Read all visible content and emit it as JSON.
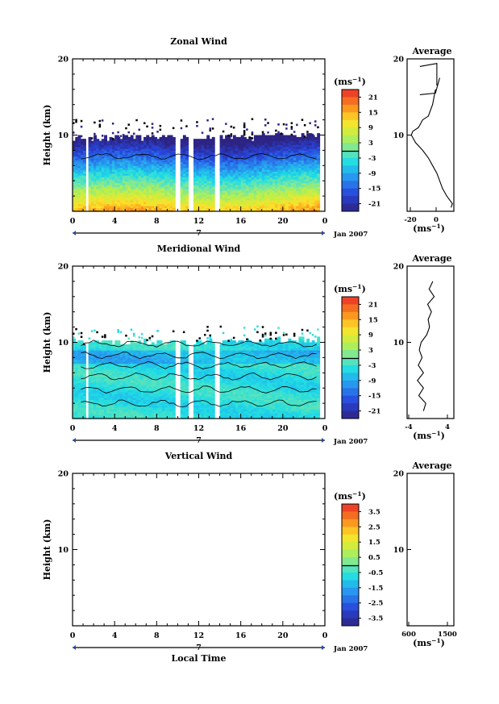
{
  "chart_data": [
    {
      "type": "heatmap",
      "title": "Zonal Wind",
      "ylabel": "Height (km)",
      "y_ticks": [
        "20",
        "10"
      ],
      "ylim": [
        0,
        20
      ],
      "x_ticks": [
        "0",
        "4",
        "8",
        "12",
        "16",
        "20",
        "0"
      ],
      "xlim": [
        0,
        24
      ],
      "date_day_label": "7",
      "date_label": "Jan 2007",
      "colorbar": {
        "unit": "(ms",
        "unit_exp": "−1",
        "unit_close": ")",
        "ticks": [
          "21",
          "15",
          "9",
          "3",
          "-3",
          "-9",
          "-15",
          "-21"
        ],
        "range": [
          -24,
          24
        ]
      },
      "average": {
        "title": "Average",
        "x_ticks": [
          "-20",
          "0"
        ],
        "xlim": [
          -25,
          8
        ],
        "xlabel": "(ms",
        "xlabel_exp": "−1",
        "xlabel_close": ")",
        "y_ticks": [
          "20",
          "10"
        ],
        "profile": [
          [
            0.5,
            6
          ],
          [
            1.0,
            7
          ],
          [
            1.5,
            5
          ],
          [
            2.0,
            3
          ],
          [
            3,
            0
          ],
          [
            4,
            -2
          ],
          [
            5,
            -4
          ],
          [
            6,
            -7
          ],
          [
            7,
            -10
          ],
          [
            8,
            -14
          ],
          [
            9,
            -19
          ],
          [
            10,
            -22
          ],
          [
            10.5,
            -21
          ],
          [
            11,
            -17
          ],
          [
            12,
            -14
          ],
          [
            12.5,
            -10
          ],
          [
            13,
            -9
          ],
          [
            14,
            -7
          ],
          [
            15,
            -6
          ],
          [
            16,
            -5
          ]
        ]
      }
    },
    {
      "type": "heatmap",
      "title": "Meridional Wind",
      "ylabel": "Height (km)",
      "y_ticks": [
        "20",
        "10"
      ],
      "ylim": [
        0,
        20
      ],
      "x_ticks": [
        "0",
        "4",
        "8",
        "12",
        "16",
        "20",
        "0"
      ],
      "xlim": [
        0,
        24
      ],
      "date_day_label": "7",
      "date_label": "Jan 2007",
      "colorbar": {
        "unit": "(ms",
        "unit_exp": "−1",
        "unit_close": ")",
        "ticks": [
          "21",
          "15",
          "9",
          "3",
          "-3",
          "-9",
          "-15",
          "-21"
        ],
        "range": [
          -24,
          24
        ]
      },
      "average": {
        "title": "Average",
        "x_ticks": [
          "-4",
          "4"
        ],
        "xlim": [
          -5,
          5
        ],
        "xlabel": "(ms",
        "xlabel_exp": "−1",
        "xlabel_close": ")",
        "y_ticks": [
          "20",
          "10"
        ],
        "profile": [
          [
            1,
            -1.5
          ],
          [
            2,
            -1
          ],
          [
            3,
            -2.5
          ],
          [
            4,
            -1.5
          ],
          [
            5,
            -2.8
          ],
          [
            6,
            -1.5
          ],
          [
            7,
            -2.6
          ],
          [
            8,
            -1.8
          ],
          [
            9,
            -2.4
          ],
          [
            10,
            -2.0
          ],
          [
            11,
            -0.8
          ],
          [
            12,
            -0.2
          ],
          [
            13,
            -0.5
          ],
          [
            14,
            0.2
          ],
          [
            15,
            -0.6
          ],
          [
            16,
            0.8
          ],
          [
            17,
            -0.3
          ],
          [
            18,
            0.5
          ]
        ]
      }
    },
    {
      "type": "heatmap",
      "title": "Vertical Wind",
      "ylabel": "Height (km)",
      "y_ticks": [
        "20",
        "10"
      ],
      "ylim": [
        0,
        20
      ],
      "x_ticks": [
        "0",
        "4",
        "8",
        "12",
        "16",
        "20",
        "0"
      ],
      "xlim": [
        0,
        24
      ],
      "xlabel": "Local Time",
      "date_day_label": "7",
      "date_label": "Jan 2007",
      "colorbar": {
        "unit": "(ms",
        "unit_exp": "−1",
        "unit_close": ")",
        "ticks": [
          "3.5",
          "2.5",
          "1.5",
          "0.5",
          "-0.5",
          "-1.5",
          "-2.5",
          "-3.5"
        ],
        "range": [
          -4,
          4
        ]
      },
      "average": {
        "title": "Average",
        "x_ticks": [
          "600",
          "1500"
        ],
        "xlabel": "(ms",
        "xlabel_exp": "−1",
        "xlabel_close": ")",
        "y_ticks": [
          "20",
          "10"
        ],
        "profile": []
      }
    }
  ]
}
